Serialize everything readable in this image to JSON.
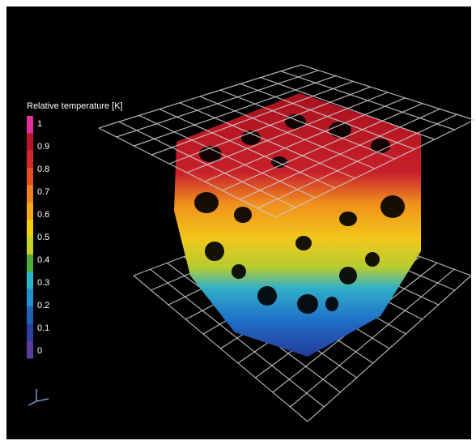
{
  "legend": {
    "title": "Relative temperature [K]",
    "ticks": [
      1,
      0.9,
      0.8,
      0.7,
      0.6,
      0.5,
      0.4,
      0.3,
      0.2,
      0.1,
      0
    ],
    "colors": [
      "#e0309a",
      "#b5152a",
      "#d02a2a",
      "#e2521f",
      "#f0821e",
      "#f4a81c",
      "#f2d000",
      "#c4d22a",
      "#4fae3a",
      "#2ab4c8",
      "#238fd2",
      "#2262b4",
      "#2b3f9e",
      "#5a3c9c"
    ]
  }
}
